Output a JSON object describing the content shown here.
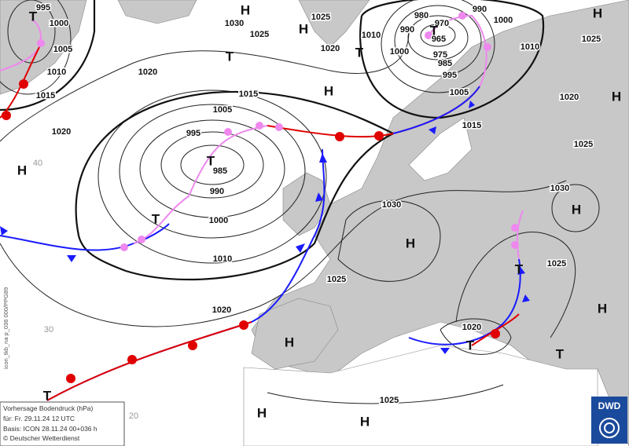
{
  "map": {
    "isobar_labels": [
      "995",
      "1000",
      "1005",
      "1010",
      "1015",
      "1020",
      "1020",
      "1030",
      "1025",
      "1025",
      "1020",
      "1010",
      "1000",
      "990",
      "980",
      "970",
      "965",
      "975",
      "985",
      "995",
      "990",
      "1000",
      "1010",
      "1005",
      "1015",
      "1020",
      "1025",
      "1025",
      "1015",
      "1005",
      "995",
      "985",
      "990",
      "1000",
      "1010",
      "1020",
      "1030",
      "1030",
      "1025",
      "1025",
      "1020",
      "1025"
    ],
    "centers": [
      "T",
      "H",
      "H",
      "T",
      "T",
      "H",
      "T",
      "H",
      "H",
      "H",
      "T",
      "T",
      "H",
      "H",
      "T",
      "H",
      "H",
      "T",
      "T",
      "T",
      "H",
      "H"
    ],
    "latitude_labels": [
      "40",
      "30",
      "20"
    ],
    "info_box": [
      "Vorhersage Bodendruck (hPa)",
      "für:  Fr. 29.11.24  12 UTC",
      "Basis: ICON  28.11.24 00+036 h",
      "© Deutscher Wetterdienst"
    ],
    "side_text": "icon_tkb_na p_036 000/PPG89",
    "logo": "DWD"
  }
}
